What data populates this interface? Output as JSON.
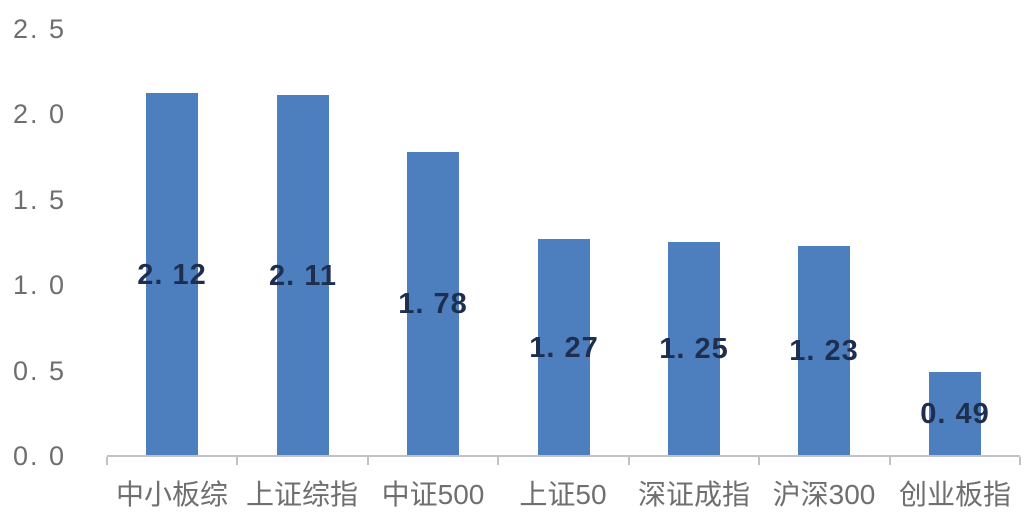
{
  "chart_data": {
    "type": "bar",
    "title": "",
    "xlabel": "",
    "ylabel": "",
    "categories": [
      "中小板综",
      "上证综指",
      "中证500",
      "上证50",
      "深证成指",
      "沪深300",
      "创业板指"
    ],
    "values": [
      2.12,
      2.11,
      1.78,
      1.27,
      1.25,
      1.23,
      0.49
    ],
    "bar_labels": [
      "2. 12",
      "2. 11",
      "1. 78",
      "1. 27",
      "1. 25",
      "1. 23",
      "0. 49"
    ],
    "y_ticks": [
      {
        "label": "2. 5",
        "value": 2.5
      },
      {
        "label": "2. 0",
        "value": 2.0
      },
      {
        "label": "1. 5",
        "value": 1.5
      },
      {
        "label": "1. 0",
        "value": 1.0
      },
      {
        "label": "0. 5",
        "value": 0.5
      },
      {
        "label": "0. 0",
        "value": 0.0
      }
    ],
    "ylim": [
      0,
      2.5
    ],
    "grid": false,
    "legend": false,
    "value_label_position": "inside-center",
    "colors": {
      "bar": "#4d7fbe",
      "bar_value_label": "#1e2e4f",
      "axis_text": "#6e6e6e",
      "category_text": "#6f6f6f",
      "axis_line": "#c2c2c2",
      "background": "#ffffff"
    }
  }
}
